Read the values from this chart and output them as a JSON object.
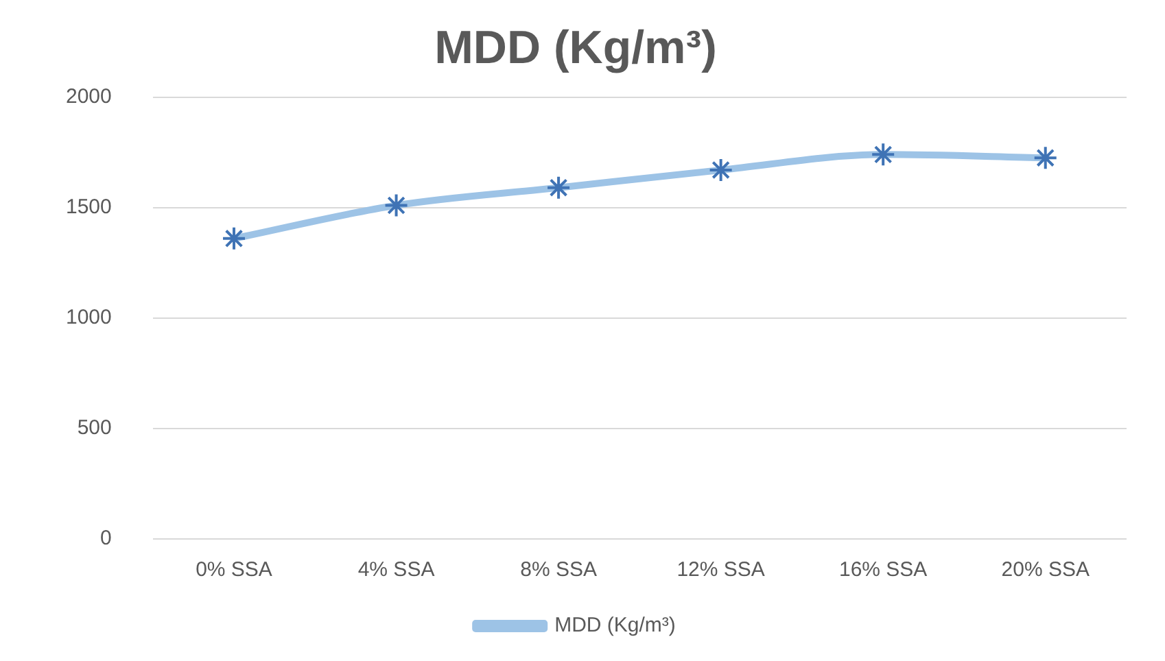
{
  "chart_data": {
    "type": "line",
    "title": "MDD (Kg/m³)",
    "categories": [
      "0% SSA",
      "4% SSA",
      "8% SSA",
      "12% SSA",
      "16% SSA",
      "20% SSA"
    ],
    "series": [
      {
        "name": "MDD (Kg/m³)",
        "color": "#9dc3e6",
        "values": [
          1360,
          1510,
          1590,
          1670,
          1740,
          1725
        ]
      }
    ],
    "ylim": [
      0,
      2000
    ],
    "yticks": [
      0,
      500,
      1000,
      1500,
      2000
    ],
    "grid": "y",
    "legend": "bottom",
    "marker": "cross",
    "line_style": "solid"
  }
}
